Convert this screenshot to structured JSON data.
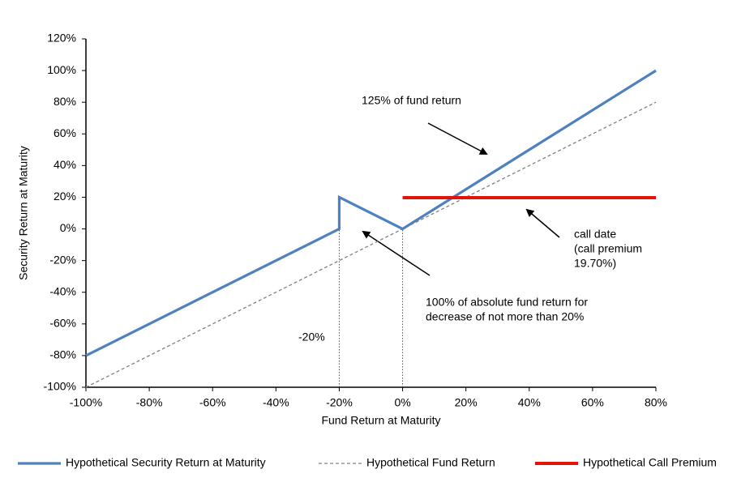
{
  "chart_data": {
    "type": "line",
    "x_label": "Fund Return at Maturity",
    "y_label": "Security Return  at Maturity",
    "xlim": [
      -100,
      80
    ],
    "xticks": [
      {
        "value": -100,
        "label": "-100%"
      },
      {
        "value": -80,
        "label": "-80%"
      },
      {
        "value": -60,
        "label": "-60%"
      },
      {
        "value": -40,
        "label": "-40%"
      },
      {
        "value": -20,
        "label": "-20%"
      },
      {
        "value": 0,
        "label": "0%"
      },
      {
        "value": 20,
        "label": "20%"
      },
      {
        "value": 40,
        "label": "40%"
      },
      {
        "value": 60,
        "label": "60%"
      },
      {
        "value": 80,
        "label": "80%"
      }
    ],
    "ylim": [
      -100,
      120
    ],
    "yticks": [
      {
        "value": -100,
        "label": "-100%"
      },
      {
        "value": -80,
        "label": "-80%"
      },
      {
        "value": -60,
        "label": "-60%"
      },
      {
        "value": -40,
        "label": "-40%"
      },
      {
        "value": -20,
        "label": "-20%"
      },
      {
        "value": 0,
        "label": "0%"
      },
      {
        "value": 20,
        "label": "20%"
      },
      {
        "value": 40,
        "label": "40%"
      },
      {
        "value": 60,
        "label": "60%"
      },
      {
        "value": 80,
        "label": "80%"
      },
      {
        "value": 100,
        "label": "100%"
      },
      {
        "value": 120,
        "label": "120%"
      }
    ],
    "series": [
      {
        "name": "Hypothetical Security Return at Maturity",
        "color": "#4f81bd",
        "x": [
          -100,
          -20,
          -20,
          0,
          80
        ],
        "values": [
          -80,
          0,
          20,
          0,
          100
        ]
      },
      {
        "name": "Hypothetical Fund Return",
        "color": "#808080",
        "dashed": true,
        "x": [
          -100,
          80
        ],
        "values": [
          -100,
          80
        ]
      },
      {
        "name": "Hypothetical Call Premium",
        "color": "#e3120b",
        "x": [
          0,
          80
        ],
        "values": [
          19.7,
          19.7
        ]
      }
    ],
    "annotations": {
      "fund_125": "125% of fund return",
      "call_date": [
        "call date",
        "(call premium",
        "19.70%)"
      ],
      "absolute": [
        "100% of absolute fund return for",
        "decrease of not more than 20%"
      ],
      "minus20": "-20%"
    }
  }
}
